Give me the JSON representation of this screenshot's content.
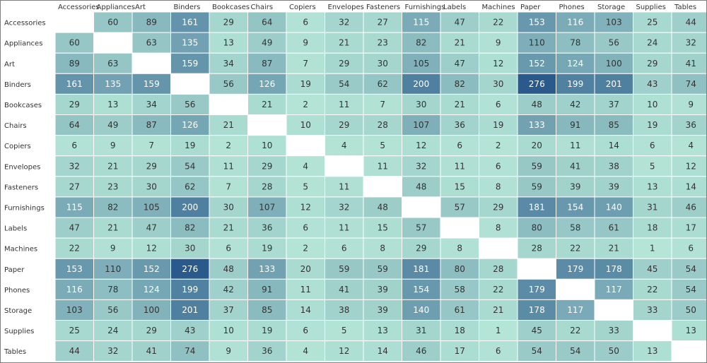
{
  "chart_data": {
    "type": "heatmap",
    "title": "",
    "xlabel": "",
    "ylabel": "",
    "categories": [
      "Accessories",
      "Appliances",
      "Art",
      "Binders",
      "Bookcases",
      "Chairs",
      "Copiers",
      "Envelopes",
      "Fasteners",
      "Furnishings",
      "Labels",
      "Machines",
      "Paper",
      "Phones",
      "Storage",
      "Supplies",
      "Tables"
    ],
    "rows": [
      "Accessories",
      "Appliances",
      "Art",
      "Binders",
      "Bookcases",
      "Chairs",
      "Copiers",
      "Envelopes",
      "Fasteners",
      "Furnishings",
      "Labels",
      "Machines",
      "Paper",
      "Phones",
      "Storage",
      "Supplies",
      "Tables"
    ],
    "values": [
      [
        null,
        60,
        89,
        161,
        29,
        64,
        6,
        32,
        27,
        115,
        47,
        22,
        153,
        116,
        103,
        25,
        44
      ],
      [
        60,
        null,
        63,
        135,
        13,
        49,
        9,
        21,
        23,
        82,
        21,
        9,
        110,
        78,
        56,
        24,
        32
      ],
      [
        89,
        63,
        null,
        159,
        34,
        87,
        7,
        29,
        30,
        105,
        47,
        12,
        152,
        124,
        100,
        29,
        41
      ],
      [
        161,
        135,
        159,
        null,
        56,
        126,
        19,
        54,
        62,
        200,
        82,
        30,
        276,
        199,
        201,
        43,
        74
      ],
      [
        29,
        13,
        34,
        56,
        null,
        21,
        2,
        11,
        7,
        30,
        21,
        6,
        48,
        42,
        37,
        10,
        9
      ],
      [
        64,
        49,
        87,
        126,
        21,
        null,
        10,
        29,
        28,
        107,
        36,
        19,
        133,
        91,
        85,
        19,
        36
      ],
      [
        6,
        9,
        7,
        19,
        2,
        10,
        null,
        4,
        5,
        12,
        6,
        2,
        20,
        11,
        14,
        6,
        4
      ],
      [
        32,
        21,
        29,
        54,
        11,
        29,
        4,
        null,
        11,
        32,
        11,
        6,
        59,
        41,
        38,
        5,
        12
      ],
      [
        27,
        23,
        30,
        62,
        7,
        28,
        5,
        11,
        null,
        48,
        15,
        8,
        59,
        39,
        39,
        13,
        14
      ],
      [
        115,
        82,
        105,
        200,
        30,
        107,
        12,
        32,
        48,
        null,
        57,
        29,
        181,
        154,
        140,
        31,
        46
      ],
      [
        47,
        21,
        47,
        82,
        21,
        36,
        6,
        11,
        15,
        57,
        null,
        8,
        80,
        58,
        61,
        18,
        17
      ],
      [
        22,
        9,
        12,
        30,
        6,
        19,
        2,
        6,
        8,
        29,
        8,
        null,
        28,
        22,
        21,
        1,
        6
      ],
      [
        153,
        110,
        152,
        276,
        48,
        133,
        20,
        59,
        59,
        181,
        80,
        28,
        null,
        179,
        178,
        45,
        54
      ],
      [
        116,
        78,
        124,
        199,
        42,
        91,
        11,
        41,
        39,
        154,
        58,
        22,
        179,
        null,
        117,
        22,
        54
      ],
      [
        103,
        56,
        100,
        201,
        37,
        85,
        14,
        38,
        39,
        140,
        61,
        21,
        178,
        117,
        null,
        33,
        50
      ],
      [
        25,
        24,
        29,
        43,
        10,
        19,
        6,
        5,
        13,
        31,
        18,
        1,
        45,
        22,
        33,
        null,
        13
      ],
      [
        44,
        32,
        41,
        74,
        9,
        36,
        4,
        12,
        14,
        46,
        17,
        6,
        54,
        54,
        50,
        13,
        null
      ]
    ],
    "value_range": [
      1,
      276
    ],
    "color_scale": [
      "#b4e5d6",
      "#2a5a8c"
    ],
    "empty_cell_color": "#ffffff",
    "grid": true,
    "legend": "none"
  }
}
